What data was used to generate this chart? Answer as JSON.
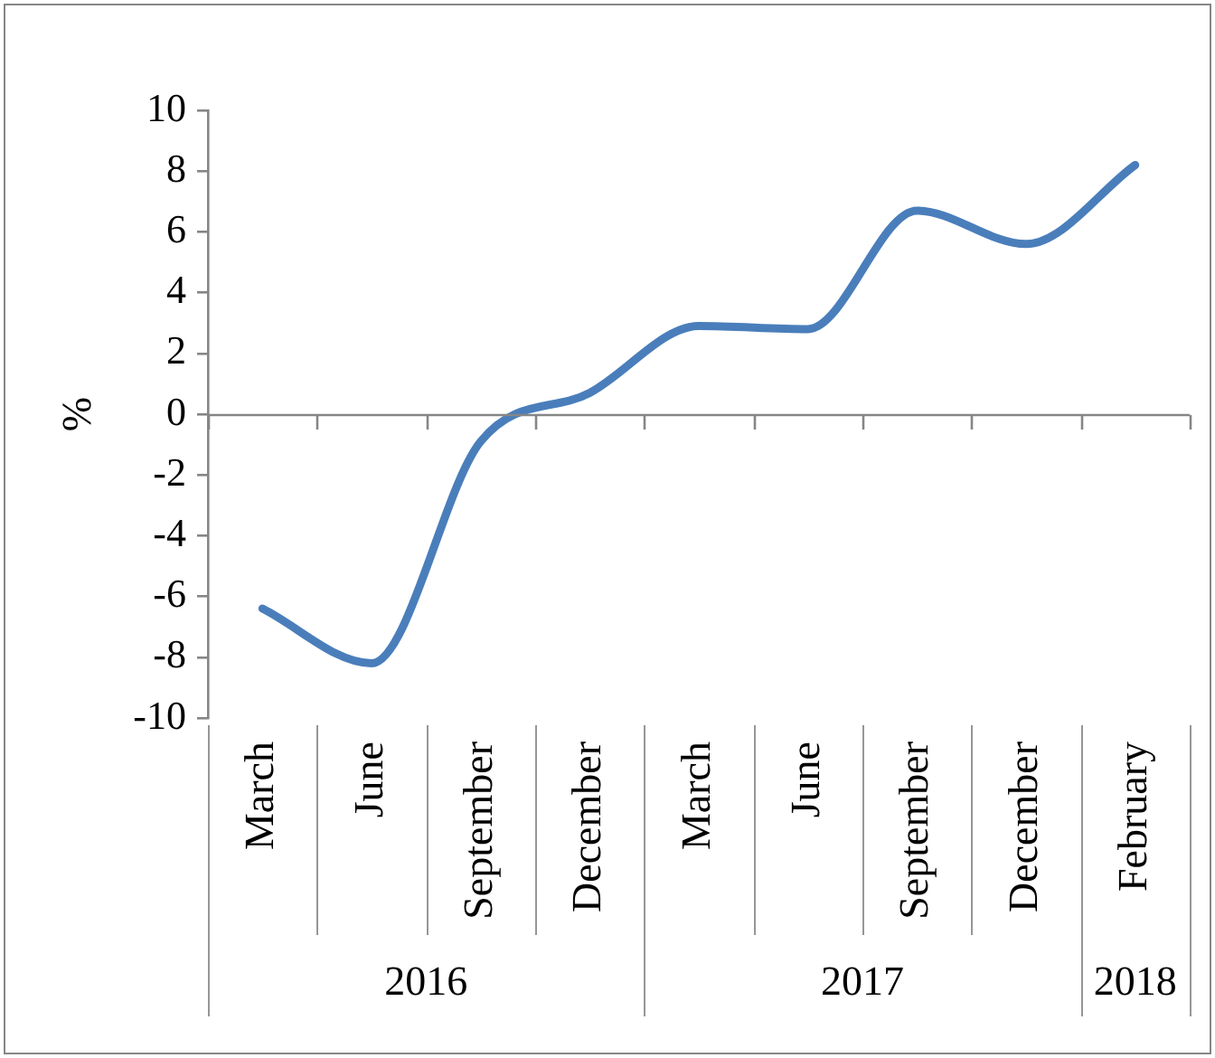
{
  "chart_data": {
    "type": "line",
    "categories": [
      "March",
      "June",
      "September",
      "December",
      "March",
      "June",
      "September",
      "December",
      "February"
    ],
    "series": [
      {
        "color": "#4a7ebb",
        "values": [
          -6.4,
          -8.2,
          -0.9,
          0.7,
          2.9,
          2.8,
          6.7,
          5.6,
          8.2
        ]
      }
    ],
    "ylabel": "%",
    "ylim": [
      -10,
      10
    ],
    "yticks": [
      -10,
      -8,
      -6,
      -4,
      -2,
      0,
      2,
      4,
      6,
      8,
      10
    ],
    "annotations": [
      "2016",
      "2017",
      "2018"
    ],
    "ref_lines": [
      {
        "axis": "y",
        "value": 0
      }
    ],
    "marker": "none",
    "legend": false
  }
}
